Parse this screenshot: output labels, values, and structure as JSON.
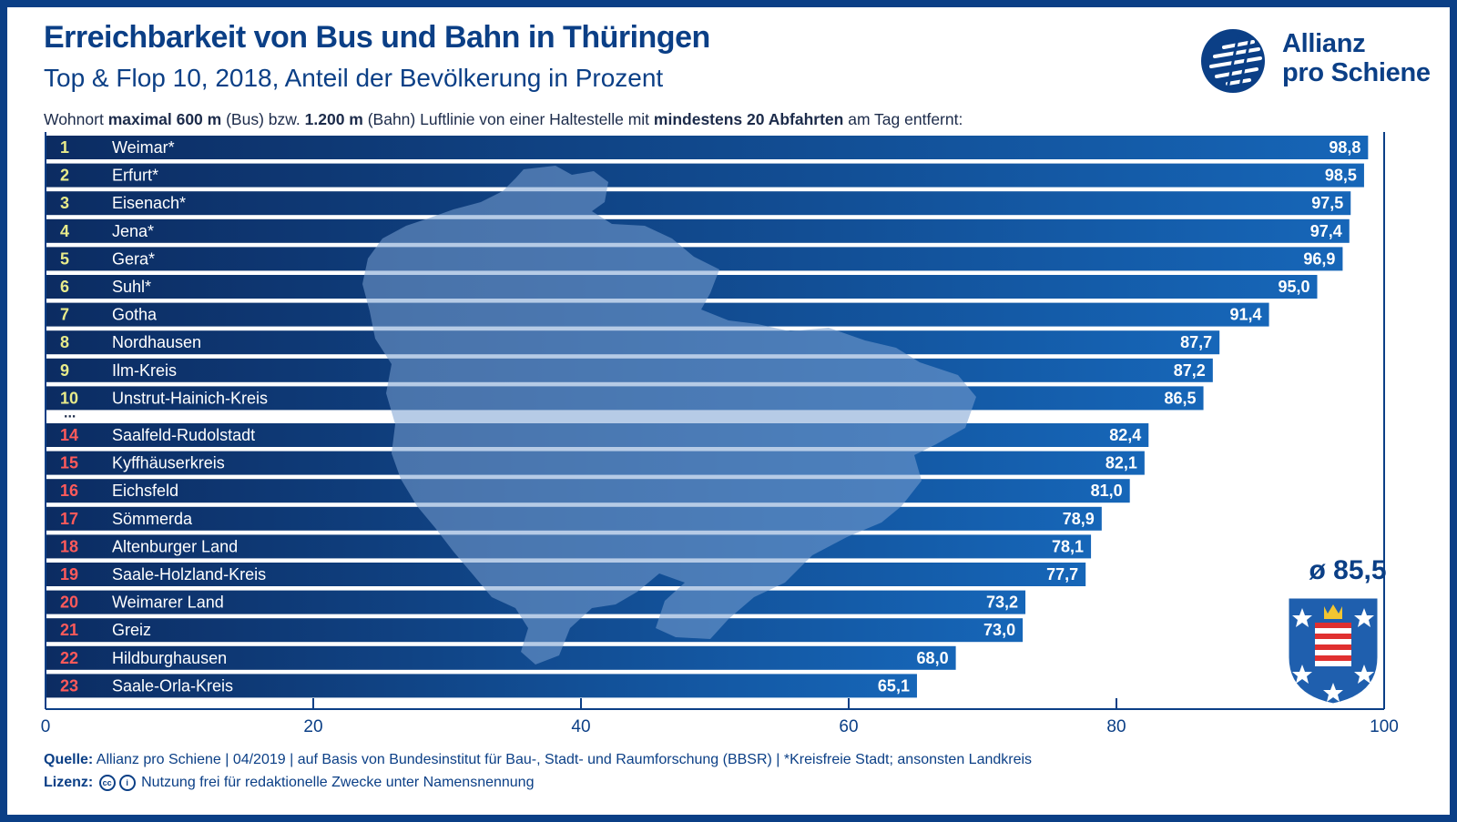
{
  "title": "Erreichbarkeit von Bus und Bahn in Thüringen",
  "subtitle": "Top & Flop 10, 2018, Anteil der Bevölkerung in Prozent",
  "note": {
    "p1": "Wohnort ",
    "b1": "maximal 600 m",
    "p2": " (Bus) bzw. ",
    "b2": "1.200 m",
    "p3": " (Bahn) Luftlinie von einer Haltestelle mit ",
    "b3": "mindestens 20 Abfahrten",
    "p4": " am Tag entfernt:"
  },
  "logo": {
    "line1": "Allianz",
    "line2": "pro Schiene"
  },
  "average": "ø 85,5",
  "ellipsis": "...",
  "source": {
    "label": "Quelle:",
    "text": " Allianz pro Schiene | 04/2019 | auf Basis von Bundesinstitut für Bau-, Stadt- und Raumforschung (BBSR) | *Kreisfreie Stadt; ansonsten Landkreis"
  },
  "license": {
    "label": "Lizenz:",
    "icon1": "cc",
    "icon2": "i",
    "text": "Nutzung frei für redaktionelle Zwecke unter Namensnennung"
  },
  "colors": {
    "brand": "#0b3f86",
    "bar_dark": "#0c2c62",
    "bar_light": "#1666b8",
    "rank_top": "#e8eb8a",
    "rank_flop": "#ff5a5a",
    "map_shape": "#5d83ba"
  },
  "icons": [
    "allianz-pro-schiene-logo-icon",
    "thueringen-crest-icon",
    "thueringen-map-silhouette-icon",
    "creative-commons-icon",
    "attribution-icon"
  ],
  "chart_data": {
    "type": "bar",
    "orientation": "horizontal",
    "xlim": [
      0,
      100
    ],
    "x_ticks": [
      0,
      20,
      40,
      60,
      80,
      100
    ],
    "x_tick_labels": [
      "0",
      "20",
      "40",
      "60",
      "80",
      "100"
    ],
    "grid": false,
    "ranks": [
      "1",
      "2",
      "3",
      "4",
      "5",
      "6",
      "7",
      "8",
      "9",
      "10",
      "14",
      "15",
      "16",
      "17",
      "18",
      "19",
      "20",
      "21",
      "22",
      "23"
    ],
    "categories": [
      "Weimar*",
      "Erfurt*",
      "Eisenach*",
      "Jena*",
      "Gera*",
      "Suhl*",
      "Gotha",
      "Nordhausen",
      "Ilm-Kreis",
      "Unstrut-Hainich-Kreis",
      "Saalfeld-Rudolstadt",
      "Kyffhäuserkreis",
      "Eichsfeld",
      "Sömmerda",
      "Altenburger Land",
      "Saale-Holzland-Kreis",
      "Weimarer Land",
      "Greiz",
      "Hildburghausen",
      "Saale-Orla-Kreis"
    ],
    "values": [
      98.8,
      98.5,
      97.5,
      97.4,
      96.9,
      95.0,
      91.4,
      87.7,
      87.2,
      86.5,
      82.4,
      82.1,
      81.0,
      78.9,
      78.1,
      77.7,
      73.2,
      73.0,
      68.0,
      65.1
    ],
    "value_labels": [
      "98,8",
      "98,5",
      "97,5",
      "97,4",
      "96,9",
      "95,0",
      "91,4",
      "87,7",
      "87,2",
      "86,5",
      "82,4",
      "82,1",
      "81,0",
      "78,9",
      "78,1",
      "77,7",
      "73,2",
      "73,0",
      "68,0",
      "65,1"
    ],
    "group": [
      "top",
      "top",
      "top",
      "top",
      "top",
      "top",
      "top",
      "top",
      "top",
      "top",
      "flop",
      "flop",
      "flop",
      "flop",
      "flop",
      "flop",
      "flop",
      "flop",
      "flop",
      "flop"
    ],
    "reference_line": {
      "value": 85.5,
      "label": "ø 85,5"
    }
  }
}
